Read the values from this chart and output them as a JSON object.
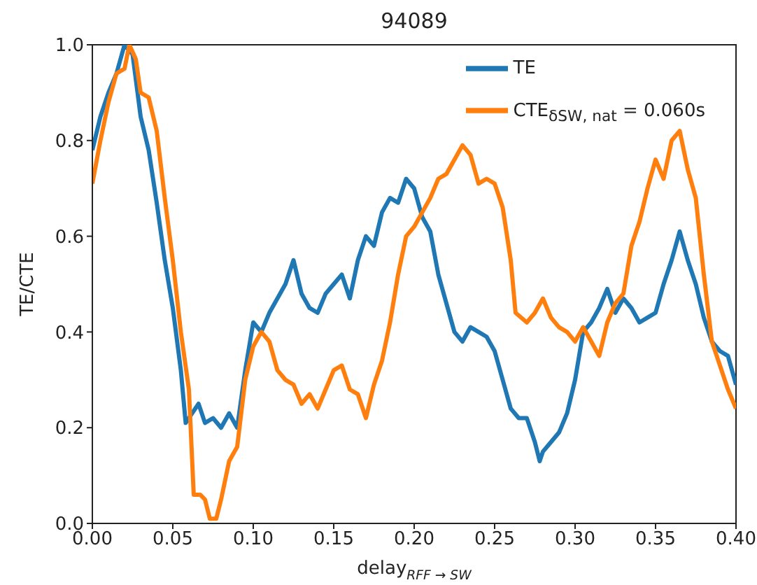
{
  "chart_data": {
    "type": "line",
    "title": "94089",
    "xlabel": "delay$_{RFF → SW}$",
    "ylabel": "TE/CTE",
    "xlim": [
      0,
      0.4
    ],
    "ylim": [
      0,
      1
    ],
    "xticks": [
      {
        "value": 0,
        "label": "0.00"
      },
      {
        "value": 0.05,
        "label": "0.05"
      },
      {
        "value": 0.1,
        "label": "0.10"
      },
      {
        "value": 0.15,
        "label": "0.15"
      },
      {
        "value": 0.2,
        "label": "0.20"
      },
      {
        "value": 0.25,
        "label": "0.25"
      },
      {
        "value": 0.3,
        "label": "0.30"
      },
      {
        "value": 0.35,
        "label": "0.35"
      },
      {
        "value": 0.4,
        "label": "0.40"
      }
    ],
    "yticks": [
      {
        "value": 0,
        "label": "0.0"
      },
      {
        "value": 0.2,
        "label": "0.2"
      },
      {
        "value": 0.4,
        "label": "0.4"
      },
      {
        "value": 0.6,
        "label": "0.6"
      },
      {
        "value": 0.8,
        "label": "0.8"
      },
      {
        "value": 1,
        "label": "1.0"
      }
    ],
    "grid": false,
    "legend": "top right",
    "marker": "none",
    "line_style": "solid",
    "series": [
      {
        "name": "TE",
        "color": "#1f77b4",
        "x": [
          0,
          0.005,
          0.01,
          0.015,
          0.02,
          0.025,
          0.03,
          0.035,
          0.04,
          0.045,
          0.05,
          0.055,
          0.058,
          0.062,
          0.066,
          0.07,
          0.075,
          0.08,
          0.085,
          0.09,
          0.095,
          0.1,
          0.105,
          0.11,
          0.115,
          0.12,
          0.125,
          0.13,
          0.135,
          0.14,
          0.145,
          0.15,
          0.155,
          0.16,
          0.165,
          0.17,
          0.175,
          0.18,
          0.185,
          0.19,
          0.195,
          0.2,
          0.205,
          0.21,
          0.215,
          0.22,
          0.225,
          0.23,
          0.235,
          0.24,
          0.245,
          0.25,
          0.255,
          0.26,
          0.265,
          0.27,
          0.275,
          0.278,
          0.28,
          0.285,
          0.29,
          0.295,
          0.3,
          0.305,
          0.31,
          0.315,
          0.32,
          0.325,
          0.33,
          0.335,
          0.34,
          0.345,
          0.35,
          0.355,
          0.36,
          0.365,
          0.37,
          0.375,
          0.38,
          0.385,
          0.39,
          0.395,
          0.4
        ],
        "values": [
          0.78,
          0.85,
          0.9,
          0.94,
          1.0,
          0.98,
          0.85,
          0.78,
          0.67,
          0.55,
          0.45,
          0.32,
          0.21,
          0.23,
          0.25,
          0.21,
          0.22,
          0.2,
          0.23,
          0.2,
          0.32,
          0.42,
          0.4,
          0.44,
          0.47,
          0.5,
          0.55,
          0.48,
          0.45,
          0.44,
          0.48,
          0.5,
          0.52,
          0.47,
          0.55,
          0.6,
          0.58,
          0.65,
          0.68,
          0.67,
          0.72,
          0.7,
          0.64,
          0.61,
          0.52,
          0.46,
          0.4,
          0.38,
          0.41,
          0.4,
          0.39,
          0.36,
          0.3,
          0.24,
          0.22,
          0.22,
          0.17,
          0.13,
          0.15,
          0.17,
          0.19,
          0.23,
          0.3,
          0.4,
          0.42,
          0.45,
          0.49,
          0.44,
          0.47,
          0.45,
          0.42,
          0.43,
          0.44,
          0.5,
          0.55,
          0.61,
          0.55,
          0.5,
          0.43,
          0.38,
          0.36,
          0.35,
          0.29
        ]
      },
      {
        "name": "CTE$_{δSW, nat}$ = 0.060s",
        "color": "#ff7f0e",
        "x": [
          0,
          0.005,
          0.01,
          0.015,
          0.02,
          0.023,
          0.027,
          0.03,
          0.035,
          0.04,
          0.045,
          0.05,
          0.055,
          0.06,
          0.063,
          0.067,
          0.07,
          0.073,
          0.077,
          0.08,
          0.085,
          0.09,
          0.095,
          0.1,
          0.105,
          0.11,
          0.115,
          0.12,
          0.125,
          0.13,
          0.135,
          0.14,
          0.145,
          0.15,
          0.155,
          0.16,
          0.165,
          0.17,
          0.175,
          0.18,
          0.185,
          0.19,
          0.195,
          0.2,
          0.205,
          0.21,
          0.215,
          0.22,
          0.225,
          0.23,
          0.235,
          0.24,
          0.245,
          0.25,
          0.255,
          0.26,
          0.263,
          0.27,
          0.275,
          0.28,
          0.285,
          0.29,
          0.295,
          0.3,
          0.305,
          0.31,
          0.315,
          0.32,
          0.325,
          0.33,
          0.335,
          0.34,
          0.345,
          0.35,
          0.355,
          0.36,
          0.365,
          0.37,
          0.375,
          0.38,
          0.385,
          0.39,
          0.395,
          0.4
        ],
        "values": [
          0.71,
          0.8,
          0.88,
          0.94,
          0.95,
          1.0,
          0.97,
          0.9,
          0.89,
          0.82,
          0.68,
          0.55,
          0.4,
          0.28,
          0.06,
          0.06,
          0.05,
          0.01,
          0.01,
          0.05,
          0.13,
          0.16,
          0.3,
          0.37,
          0.4,
          0.38,
          0.32,
          0.3,
          0.29,
          0.25,
          0.27,
          0.24,
          0.28,
          0.32,
          0.33,
          0.28,
          0.27,
          0.22,
          0.29,
          0.34,
          0.42,
          0.52,
          0.6,
          0.62,
          0.65,
          0.68,
          0.72,
          0.73,
          0.76,
          0.79,
          0.77,
          0.71,
          0.72,
          0.71,
          0.66,
          0.55,
          0.44,
          0.42,
          0.44,
          0.47,
          0.43,
          0.41,
          0.4,
          0.38,
          0.41,
          0.38,
          0.35,
          0.42,
          0.46,
          0.48,
          0.58,
          0.63,
          0.7,
          0.76,
          0.72,
          0.8,
          0.82,
          0.74,
          0.68,
          0.52,
          0.38,
          0.33,
          0.28,
          0.24
        ]
      }
    ]
  }
}
